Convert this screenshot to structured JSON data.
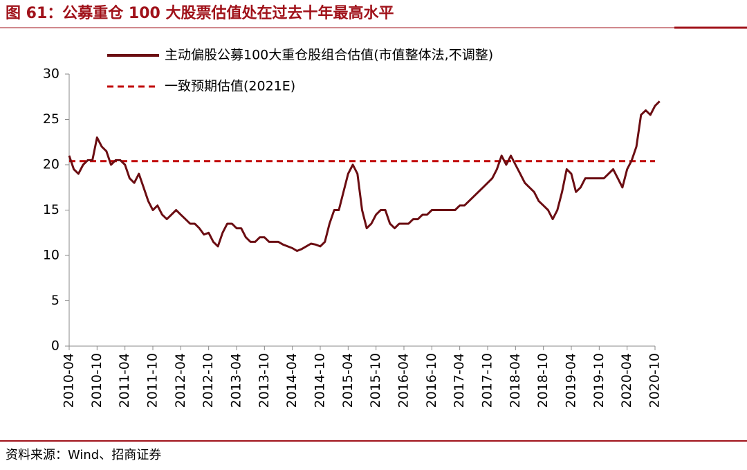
{
  "chart_data": {
    "type": "line",
    "title": "图 61：公募重仓 100 大股票估值处在过去十年最高水平",
    "source": "资料来源：Wind、招商证券",
    "x": [
      "2010-04",
      "2010-05",
      "2010-06",
      "2010-07",
      "2010-08",
      "2010-09",
      "2010-10",
      "2010-11",
      "2010-12",
      "2011-01",
      "2011-02",
      "2011-03",
      "2011-04",
      "2011-05",
      "2011-06",
      "2011-07",
      "2011-08",
      "2011-09",
      "2011-10",
      "2011-11",
      "2011-12",
      "2012-01",
      "2012-02",
      "2012-03",
      "2012-04",
      "2012-05",
      "2012-06",
      "2012-07",
      "2012-08",
      "2012-09",
      "2012-10",
      "2012-11",
      "2012-12",
      "2013-01",
      "2013-02",
      "2013-03",
      "2013-04",
      "2013-05",
      "2013-06",
      "2013-07",
      "2013-08",
      "2013-09",
      "2013-10",
      "2013-11",
      "2013-12",
      "2014-01",
      "2014-02",
      "2014-03",
      "2014-04",
      "2014-05",
      "2014-06",
      "2014-07",
      "2014-08",
      "2014-09",
      "2014-10",
      "2014-11",
      "2014-12",
      "2015-01",
      "2015-02",
      "2015-03",
      "2015-04",
      "2015-05",
      "2015-06",
      "2015-07",
      "2015-08",
      "2015-09",
      "2015-10",
      "2015-11",
      "2015-12",
      "2016-01",
      "2016-02",
      "2016-03",
      "2016-04",
      "2016-05",
      "2016-06",
      "2016-07",
      "2016-08",
      "2016-09",
      "2016-10",
      "2016-11",
      "2016-12",
      "2017-01",
      "2017-02",
      "2017-03",
      "2017-04",
      "2017-05",
      "2017-06",
      "2017-07",
      "2017-08",
      "2017-09",
      "2017-10",
      "2017-11",
      "2017-12",
      "2018-01",
      "2018-02",
      "2018-03",
      "2018-04",
      "2018-05",
      "2018-06",
      "2018-07",
      "2018-08",
      "2018-09",
      "2018-10",
      "2018-11",
      "2018-12",
      "2019-01",
      "2019-02",
      "2019-03",
      "2019-04",
      "2019-05",
      "2019-06",
      "2019-07",
      "2019-08",
      "2019-09",
      "2019-10",
      "2019-11",
      "2019-12",
      "2020-01",
      "2020-02",
      "2020-03",
      "2020-04",
      "2020-05",
      "2020-06",
      "2020-07",
      "2020-08",
      "2020-09",
      "2020-10",
      "2020-11"
    ],
    "series": [
      {
        "name": "主动偏股公募100大重仓股组合估值(市值整体法,不调整)",
        "color": "#6b0d12",
        "values": [
          21,
          19.5,
          19,
          20,
          20.5,
          20.5,
          23,
          22,
          21.5,
          20,
          20.5,
          20.5,
          20,
          18.5,
          18,
          19,
          17.5,
          16,
          15,
          15.5,
          14.5,
          14,
          14.5,
          15,
          14.5,
          14,
          13.5,
          13.5,
          13,
          12.3,
          12.5,
          11.5,
          11,
          12.5,
          13.5,
          13.5,
          13,
          13,
          12,
          11.5,
          11.5,
          12,
          12,
          11.5,
          11.5,
          11.5,
          11.2,
          11,
          10.8,
          10.5,
          10.7,
          11,
          11.3,
          11.2,
          11,
          11.5,
          13.5,
          15,
          15,
          17,
          19,
          20,
          19,
          15,
          13,
          13.5,
          14.5,
          15,
          15,
          13.5,
          13,
          13.5,
          13.5,
          13.5,
          14,
          14,
          14.5,
          14.5,
          15,
          15,
          15,
          15,
          15,
          15,
          15.5,
          15.5,
          16,
          16.5,
          17,
          17.5,
          18,
          18.5,
          19.5,
          21,
          20,
          21,
          20,
          19,
          18,
          17.5,
          17,
          16,
          15.5,
          15,
          14,
          15,
          17,
          19.5,
          19,
          17,
          17.5,
          18.5,
          18.5,
          18.5,
          18.5,
          18.5,
          19,
          19.5,
          18.5,
          17.5,
          19.5,
          20.5,
          22,
          25.5,
          26,
          25.5,
          26.5,
          27
        ]
      }
    ],
    "reference_line": {
      "name": "一致预期估值(2021E)",
      "value": 20.4,
      "color": "#c00000"
    },
    "xticks": [
      "2010-04",
      "2010-10",
      "2011-04",
      "2011-10",
      "2012-04",
      "2012-10",
      "2013-04",
      "2013-10",
      "2014-04",
      "2014-10",
      "2015-04",
      "2015-10",
      "2016-04",
      "2016-10",
      "2017-04",
      "2017-10",
      "2018-04",
      "2018-10",
      "2019-04",
      "2019-10",
      "2020-04",
      "2020-10"
    ],
    "ylim": [
      0,
      30
    ],
    "yticks": [
      0,
      5,
      10,
      15,
      20,
      25,
      30
    ]
  }
}
